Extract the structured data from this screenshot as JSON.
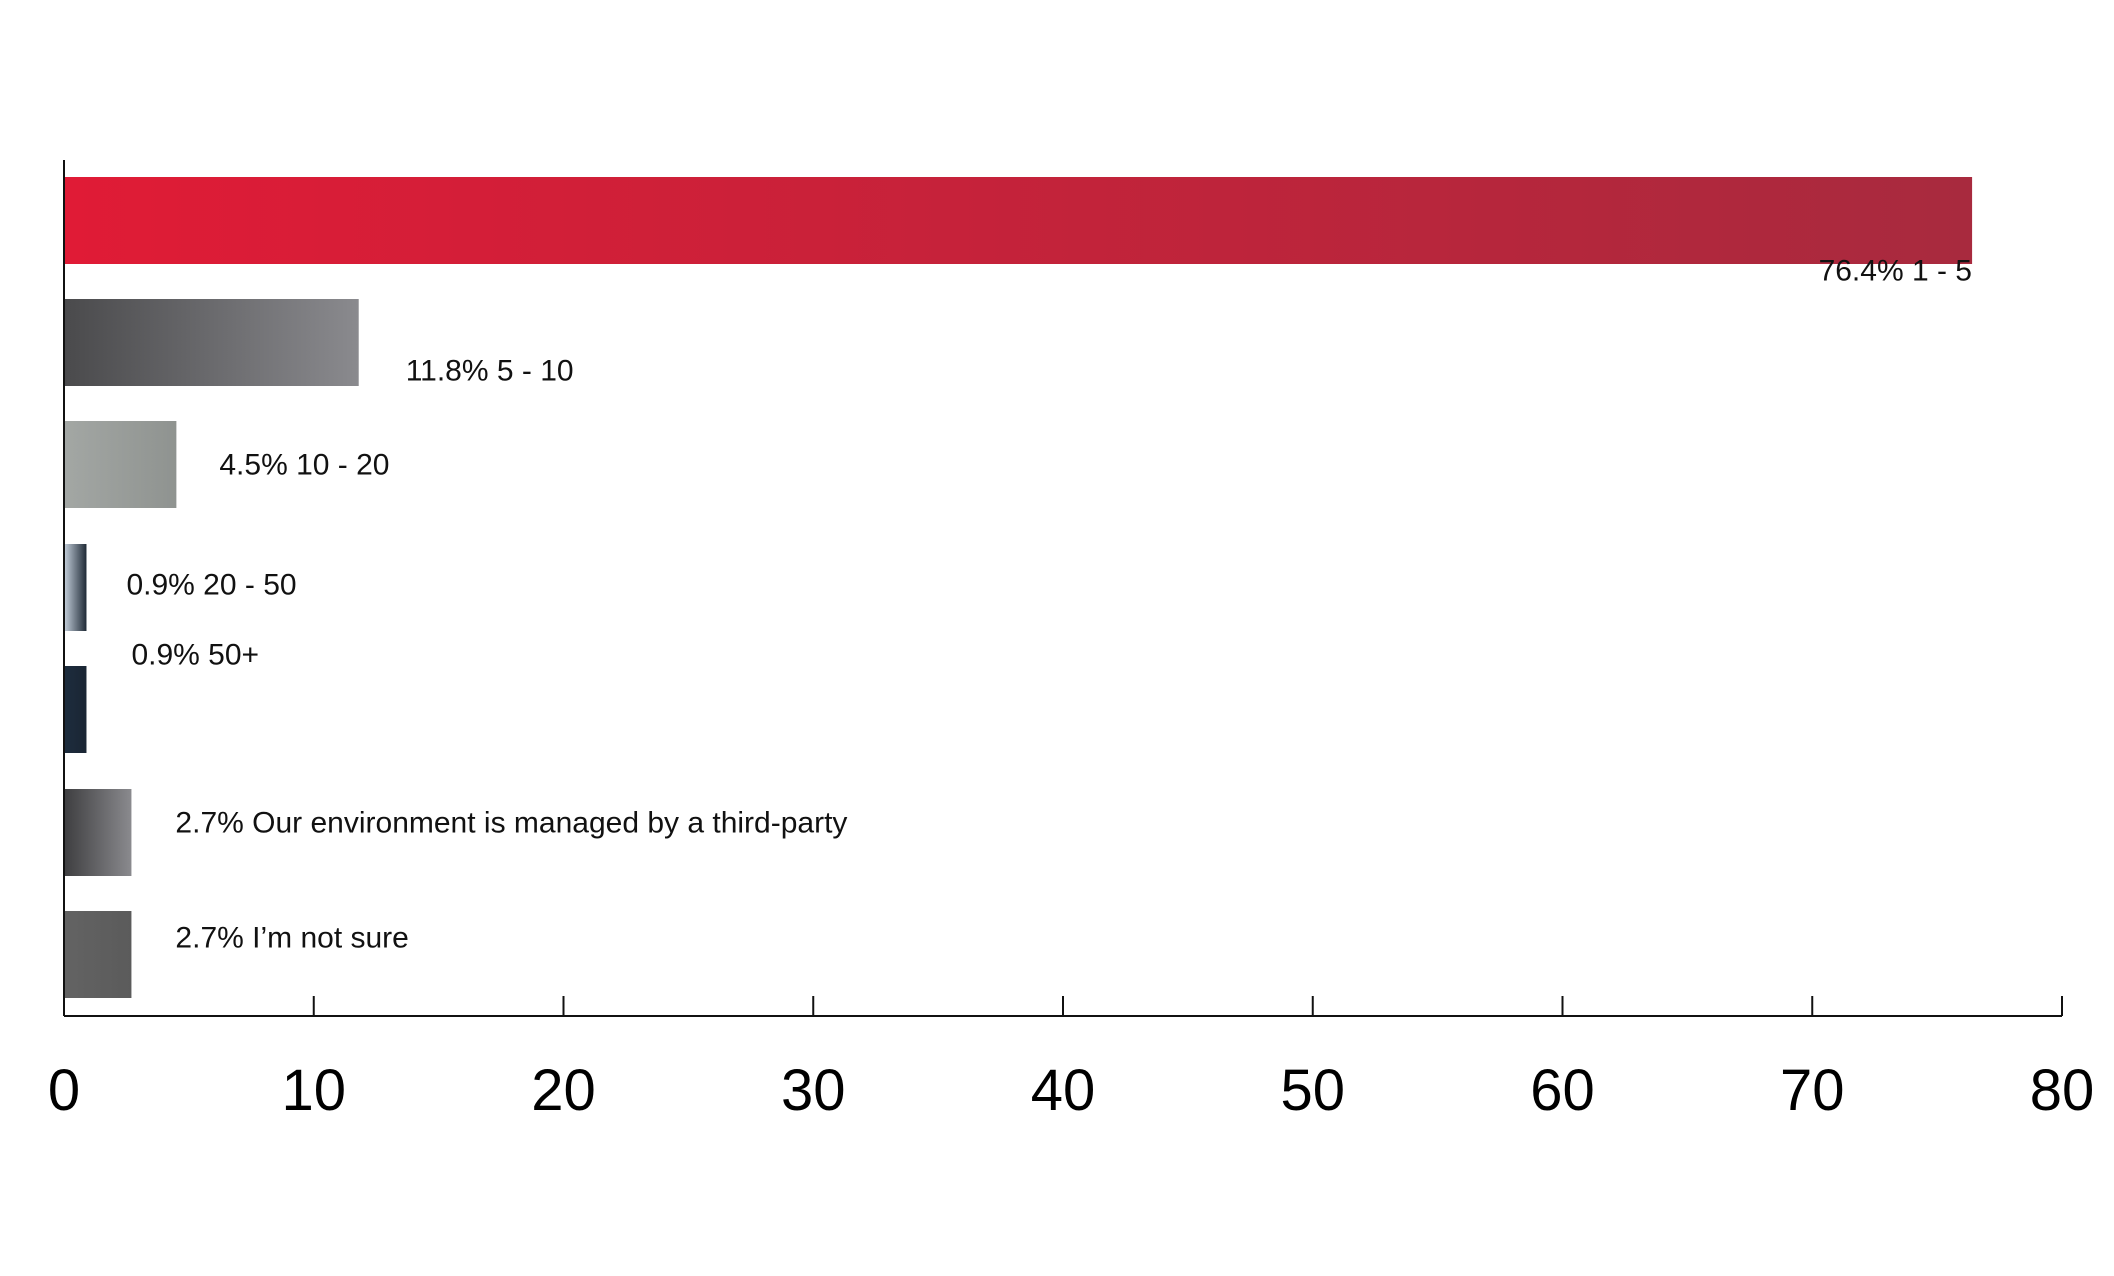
{
  "chart_data": {
    "type": "bar",
    "orientation": "horizontal",
    "title": "",
    "xlabel": "",
    "ylabel": "",
    "xlim": [
      0,
      80
    ],
    "ticks": [
      0,
      10,
      20,
      30,
      40,
      50,
      60,
      70,
      80
    ],
    "tick_labels": [
      "0",
      "10",
      "20",
      "30",
      "40",
      "50",
      "60",
      "70",
      "80"
    ],
    "grid": false,
    "legend": "none",
    "categories": [
      "1 - 5",
      "5 - 10",
      "10 - 20",
      "20 - 50",
      "50+",
      "Our environment is managed by a third-party",
      "I’m not sure"
    ],
    "values": [
      76.4,
      11.8,
      4.5,
      0.9,
      0.9,
      2.7,
      2.7
    ],
    "data_labels": [
      "76.4% 1 - 5",
      "11.8% 5 - 10",
      "4.5% 10 - 20",
      "0.9% 20 - 50",
      "0.9% 50+",
      "2.7% Our environment is managed by a third-party",
      "2.7% I’m not sure"
    ],
    "bar_colors": [
      [
        "#e01b36",
        "#a82a3e"
      ],
      [
        "#4a4a4c",
        "#8a8a8e"
      ],
      [
        "#a3a7a4",
        "#8f9390"
      ],
      [
        "#c5d0dc",
        "#1f2a36"
      ],
      [
        "#1d2d3e",
        "#1a2533"
      ],
      [
        "#3e3e40",
        "#8a8a8e"
      ],
      [
        "#636363",
        "#5b5b5b"
      ]
    ]
  }
}
